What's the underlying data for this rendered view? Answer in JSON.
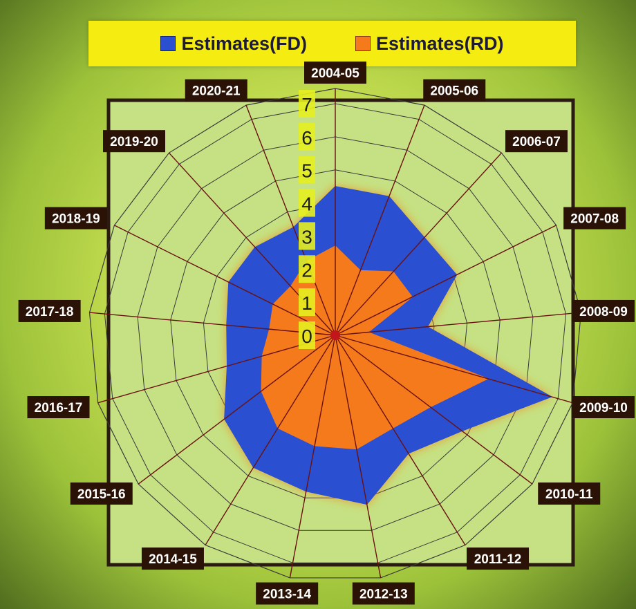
{
  "chart_data": {
    "type": "radar",
    "categories": [
      "2004-05",
      "2005-06",
      "2006-07",
      "2007-08",
      "2008-09",
      "2009-10",
      "2010-11",
      "2011-12",
      "2012-13",
      "2013-14",
      "2014-15",
      "2015-16",
      "2016-17",
      "2017-18",
      "2018-19",
      "2019-20",
      "2020-21"
    ],
    "series": [
      {
        "name": "Estimates(FD)",
        "color": "#2a4fd0",
        "values": [
          4.5,
          4.5,
          4.0,
          4.1,
          2.8,
          6.8,
          4.8,
          4.2,
          5.2,
          4.8,
          4.7,
          4.2,
          3.4,
          3.3,
          3.6,
          3.6,
          3.5
        ]
      },
      {
        "name": "Estimates(RD)",
        "color": "#f47a1c",
        "values": [
          2.7,
          2.1,
          2.6,
          2.6,
          1.0,
          4.8,
          3.6,
          3.3,
          3.5,
          3.4,
          3.3,
          2.8,
          2.3,
          2.0,
          2.1,
          2.0,
          2.4
        ]
      }
    ],
    "rticks": [
      "0",
      "1",
      "2",
      "3",
      "4",
      "5",
      "6",
      "7"
    ],
    "rlim": [
      0,
      7
    ],
    "legend": "top"
  },
  "colors": {
    "label_bg": "#2a1206",
    "label_text": "#ffffff",
    "plot_bg": "#c5e183",
    "frame": "#2a1a10",
    "spoke": "#6a1010",
    "ring": "#3a3a3a"
  }
}
